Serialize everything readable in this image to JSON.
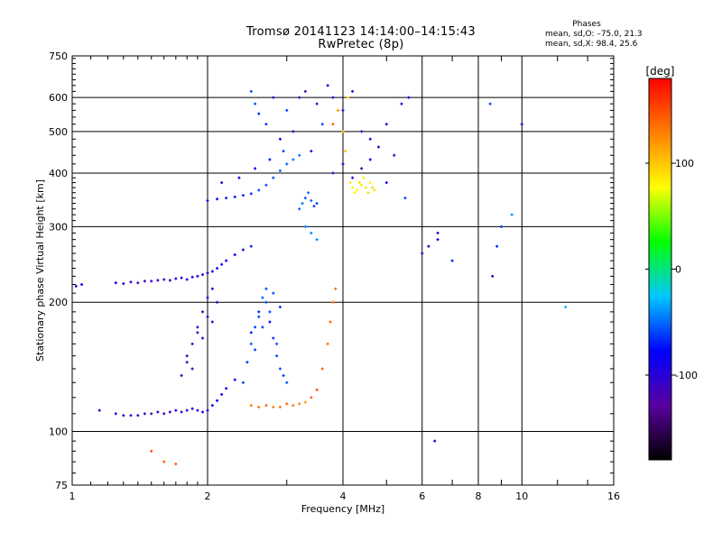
{
  "header": {
    "title_line1": "Tromsø 20141123 14:14:00–14:15:43",
    "title_line2": "RwPretec (8p)",
    "phase_title": "Phases",
    "phase_stat_o": "mean, sd,O: –75.0, 21.3",
    "phase_stat_x": "mean, sd,X:  98.4, 25.6"
  },
  "chart_data": {
    "type": "scatter",
    "xlabel": "Frequency [MHz]",
    "ylabel": "Stationary phase Virtual Height [km]",
    "x_scale": "log",
    "y_scale": "log",
    "xlim": [
      1,
      16
    ],
    "ylim": [
      75,
      750
    ],
    "x_ticks": [
      1,
      2,
      4,
      6,
      8,
      10,
      16
    ],
    "x_tick_labels": [
      "1",
      "2",
      "4",
      "6",
      "8",
      "10",
      "16"
    ],
    "y_ticks": [
      75,
      100,
      200,
      300,
      400,
      500,
      600,
      750
    ],
    "y_tick_labels": [
      "75",
      "100",
      "200",
      "300",
      "400",
      "500",
      "600",
      "750"
    ],
    "grid": true,
    "colorbar": {
      "label": "[deg]",
      "range": [
        -180,
        180
      ],
      "ticks": [
        100,
        0,
        -100
      ],
      "tick_labels": [
        "100",
        "0",
        "-100"
      ],
      "colors": [
        "#000000",
        "#5a00a0",
        "#0000ff",
        "#00c8ff",
        "#00ff00",
        "#ffff00",
        "#ff8000",
        "#ff0000"
      ]
    },
    "series": [
      {
        "x": [
          1.02,
          1.05,
          1.25,
          1.3,
          1.35,
          1.4,
          1.45,
          1.5,
          1.55,
          1.6,
          1.65,
          1.7,
          1.75,
          1.8,
          1.85,
          1.9,
          1.95,
          2.0,
          2.05,
          2.1,
          2.15,
          2.2,
          2.3,
          2.4,
          2.5
        ],
        "y": [
          218,
          220,
          222,
          221,
          223,
          222,
          224,
          224,
          225,
          226,
          225,
          227,
          228,
          226,
          229,
          230,
          232,
          234,
          236,
          240,
          245,
          250,
          258,
          265,
          270
        ],
        "phase": [
          -90,
          -85,
          -80,
          -105,
          -108,
          -110,
          -112,
          -109,
          -108,
          -110,
          -106,
          -104,
          -103,
          -100,
          -102,
          -95,
          -98,
          -90,
          -88,
          -85,
          -82,
          -80,
          -78,
          -75,
          -70
        ]
      },
      {
        "x": [
          1.15,
          1.25,
          1.3,
          1.35,
          1.4,
          1.45,
          1.5,
          1.55,
          1.6,
          1.65,
          1.7,
          1.75,
          1.8,
          1.85,
          1.9,
          1.95,
          2.0,
          2.05,
          2.1,
          2.15,
          2.2,
          2.3
        ],
        "y": [
          112,
          110,
          109,
          109,
          109,
          110,
          110,
          111,
          110,
          111,
          112,
          111,
          112,
          113,
          112,
          111,
          112,
          115,
          118,
          122,
          126,
          132
        ],
        "phase": [
          -95,
          -100,
          -105,
          -110,
          -108,
          -112,
          -110,
          -100,
          -115,
          -105,
          -102,
          -110,
          -95,
          -100,
          -108,
          -90,
          -85,
          -80,
          -80,
          -85,
          -88,
          -90
        ]
      },
      {
        "x": [
          1.75,
          1.8,
          1.85,
          1.9,
          1.95,
          2.0,
          2.05,
          2.1,
          1.8,
          1.9,
          2.0,
          1.85,
          1.95,
          2.05
        ],
        "y": [
          135,
          145,
          160,
          175,
          190,
          205,
          215,
          200,
          150,
          170,
          185,
          140,
          165,
          180
        ],
        "phase": [
          -110,
          -112,
          -108,
          -115,
          -110,
          -105,
          -100,
          -98,
          -112,
          -110,
          -106,
          -108,
          -104,
          -102
        ]
      },
      {
        "x": [
          2.4,
          2.45,
          2.5,
          2.55,
          2.6,
          2.65,
          2.7,
          2.75,
          2.8,
          2.85,
          2.9,
          2.95,
          3.0,
          2.5,
          2.6,
          2.7,
          2.8,
          2.9,
          2.55,
          2.65,
          2.75,
          2.85
        ],
        "y": [
          130,
          145,
          160,
          175,
          190,
          205,
          215,
          180,
          165,
          150,
          140,
          135,
          130,
          170,
          185,
          200,
          210,
          195,
          155,
          175,
          190,
          160
        ],
        "phase": [
          -60,
          -65,
          -55,
          -60,
          -70,
          -50,
          -55,
          -75,
          -65,
          -60,
          -58,
          -62,
          -55,
          -70,
          -60,
          -58,
          -55,
          -65,
          -60,
          -62,
          -58,
          -55
        ]
      },
      {
        "x": [
          2.5,
          2.6,
          2.7,
          2.8,
          2.9,
          3.0,
          3.1,
          3.2,
          3.3,
          3.4,
          3.5,
          3.6,
          3.7,
          3.75,
          3.8,
          3.85
        ],
        "y": [
          115,
          114,
          115,
          114,
          114,
          116,
          115,
          116,
          117,
          120,
          125,
          140,
          160,
          180,
          200,
          215
        ],
        "phase": [
          130,
          135,
          140,
          128,
          132,
          138,
          130,
          125,
          120,
          140,
          145,
          142,
          135,
          140,
          138,
          135
        ]
      },
      {
        "x": [
          2.0,
          2.1,
          2.2,
          2.3,
          2.4,
          2.5,
          2.6,
          2.7,
          2.8,
          2.9,
          3.0,
          3.1,
          3.2,
          2.15,
          2.35,
          2.55,
          2.75,
          2.95
        ],
        "y": [
          345,
          348,
          350,
          352,
          355,
          358,
          365,
          375,
          390,
          405,
          420,
          430,
          440,
          380,
          390,
          410,
          430,
          450
        ],
        "phase": [
          -80,
          -75,
          -70,
          -72,
          -68,
          -65,
          -60,
          -58,
          -55,
          -52,
          -50,
          -48,
          -45,
          -95,
          -90,
          -85,
          -70,
          -60
        ]
      },
      {
        "x": [
          2.5,
          2.55,
          2.6,
          2.7,
          2.8,
          2.9,
          3.0,
          3.1,
          3.2,
          3.3,
          3.4,
          3.5,
          3.6,
          3.7,
          3.8,
          4.0,
          4.2,
          4.4,
          4.6,
          4.8,
          5.0,
          5.2,
          5.4,
          5.6
        ],
        "y": [
          620,
          580,
          550,
          520,
          600,
          480,
          560,
          500,
          600,
          620,
          450,
          580,
          520,
          640,
          600,
          560,
          620,
          500,
          480,
          460,
          520,
          440,
          580,
          600
        ],
        "phase": [
          -60,
          -55,
          -70,
          -65,
          -110,
          -80,
          -60,
          -105,
          -115,
          -120,
          -100,
          -110,
          -60,
          -90,
          -105,
          -95,
          -100,
          -112,
          -108,
          -106,
          -110,
          -115,
          -104,
          -102
        ]
      },
      {
        "x": [
          3.2,
          3.25,
          3.3,
          3.35,
          3.4,
          3.45,
          3.5,
          3.3,
          3.4,
          3.5
        ],
        "y": [
          330,
          340,
          350,
          360,
          345,
          335,
          340,
          300,
          290,
          280
        ],
        "phase": [
          -50,
          -45,
          -55,
          -48,
          -52,
          -60,
          -58,
          -45,
          -40,
          -42
        ]
      },
      {
        "x": [
          3.8,
          3.9,
          4.0,
          4.05,
          4.1,
          4.15,
          4.2,
          4.25,
          4.3,
          4.35,
          4.4,
          4.45,
          4.5,
          4.55,
          4.6,
          4.65,
          4.7
        ],
        "y": [
          520,
          560,
          500,
          450,
          600,
          380,
          370,
          360,
          365,
          380,
          375,
          390,
          370,
          360,
          380,
          370,
          365
        ],
        "phase": [
          140,
          120,
          110,
          100,
          90,
          85,
          80,
          78,
          82,
          88,
          86,
          84,
          90,
          92,
          80,
          95,
          88
        ]
      },
      {
        "x": [
          3.8,
          4.0,
          4.2,
          4.4,
          4.6,
          5.0,
          5.5,
          6.0,
          6.5,
          7.0,
          8.5,
          9.0,
          9.5,
          10.0,
          12.5,
          6.4,
          6.5,
          8.6,
          8.8,
          9.0,
          6.2,
          1.5,
          1.6,
          1.7
        ],
        "y": [
          400,
          420,
          390,
          410,
          430,
          380,
          350,
          260,
          280,
          250,
          580,
          300,
          320,
          520,
          195,
          95,
          290,
          230,
          270,
          300,
          270,
          90,
          85,
          84
        ],
        "phase": [
          -100,
          -95,
          -110,
          -105,
          -90,
          -80,
          -60,
          -100,
          -80,
          -70,
          -60,
          -50,
          -40,
          -110,
          -30,
          -110,
          -100,
          -90,
          -70,
          -60,
          -90,
          150,
          145,
          140
        ]
      }
    ]
  }
}
